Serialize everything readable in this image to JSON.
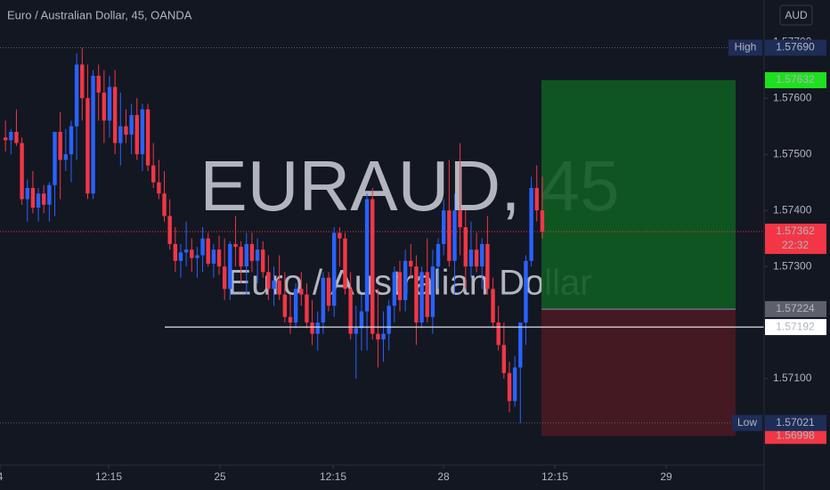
{
  "chart_data": {
    "type": "candlestick",
    "title": "Euro / Australian Dollar, 45, OANDA",
    "currency": "AUD",
    "watermark": "EURAUD, 45",
    "watermark_subtitle": "Euro / Australian Dollar",
    "up_color": "#2962ff",
    "down_color": "#f23645",
    "xlim": [
      -1,
      138.5
    ],
    "xticks": [
      {
        "value": -1,
        "label": "4"
      },
      {
        "value": 18.84,
        "label": "12:15"
      },
      {
        "value": 39.16,
        "label": "25"
      },
      {
        "value": 59.81,
        "label": "12:15"
      },
      {
        "value": 79.97,
        "label": "28"
      },
      {
        "value": 100.29,
        "label": "12:15"
      },
      {
        "value": 120.62,
        "label": "29"
      }
    ],
    "ylim": [
      1.56946,
      1.57775
    ],
    "yticks": [
      {
        "value": 1.577,
        "label": "1.57700"
      },
      {
        "value": 1.576,
        "label": "1.57600"
      },
      {
        "value": 1.575,
        "label": "1.57500"
      },
      {
        "value": 1.574,
        "label": "1.57400"
      },
      {
        "value": 1.573,
        "label": "1.57300"
      },
      {
        "value": 1.571,
        "label": "1.57100"
      }
    ],
    "open": [
      1.5753,
      1.57525,
      1.5754,
      1.5752,
      1.5742,
      1.5744,
      1.57405,
      1.5743,
      1.5741,
      1.57445,
      1.5754,
      1.5749,
      1.575,
      1.5755,
      1.5766,
      1.576,
      1.5743,
      1.5764,
      1.5761,
      1.5756,
      1.5762,
      1.5752,
      1.5755,
      1.57535,
      1.5757,
      1.575,
      1.5758,
      1.5748,
      1.5745,
      1.5743,
      1.5739,
      1.5734,
      1.5731,
      1.57325,
      1.5733,
      1.57315,
      1.5732,
      1.5735,
      1.57305,
      1.5733,
      1.573,
      1.5726,
      1.5734,
      1.57335,
      1.573,
      1.5734,
      1.5731,
      1.5733,
      1.5729,
      1.5726,
      1.57275,
      1.5725,
      1.5721,
      1.572,
      1.5726,
      1.5725,
      1.572,
      1.5718,
      1.572,
      1.5728,
      1.5723,
      1.5736,
      1.5735,
      1.5726,
      1.5718,
      1.5719,
      1.5722,
      1.5742,
      1.5718,
      1.5717,
      1.5718,
      1.5723,
      1.5729,
      1.5724,
      1.5731,
      1.573,
      1.572,
      1.5729,
      1.5721,
      1.573,
      1.5734,
      1.574,
      1.5731,
      1.574,
      1.5737,
      1.573,
      1.5733,
      1.573,
      1.5734,
      1.5726,
      1.572,
      1.5716,
      1.5711,
      1.5706,
      1.5712,
      1.572,
      1.5731,
      1.5744,
      1.574
    ],
    "high": [
      1.5756,
      1.57545,
      1.5758,
      1.5753,
      1.57455,
      1.5747,
      1.5744,
      1.57445,
      1.5745,
      1.5754,
      1.57575,
      1.57545,
      1.5756,
      1.5768,
      1.5769,
      1.5766,
      1.5765,
      1.5766,
      1.5765,
      1.5764,
      1.5765,
      1.5761,
      1.5758,
      1.5759,
      1.576,
      1.5759,
      1.5759,
      1.5752,
      1.5749,
      1.5747,
      1.5742,
      1.5737,
      1.5734,
      1.5738,
      1.5735,
      1.57335,
      1.5737,
      1.5736,
      1.5734,
      1.57355,
      1.5735,
      1.57345,
      1.5739,
      1.57345,
      1.5736,
      1.5736,
      1.5735,
      1.57345,
      1.5732,
      1.573,
      1.5732,
      1.5729,
      1.5725,
      1.5727,
      1.5729,
      1.5727,
      1.5724,
      1.5722,
      1.5729,
      1.5729,
      1.5737,
      1.5737,
      1.5736,
      1.5729,
      1.5723,
      1.5725,
      1.5743,
      1.5744,
      1.5726,
      1.5722,
      1.5724,
      1.573,
      1.5731,
      1.5733,
      1.5734,
      1.5732,
      1.573,
      1.5735,
      1.5733,
      1.5735,
      1.5742,
      1.5749,
      1.5743,
      1.5752,
      1.574,
      1.5738,
      1.5736,
      1.5735,
      1.5739,
      1.5728,
      1.5723,
      1.572,
      1.5713,
      1.5714,
      1.572,
      1.5732,
      1.5746,
      1.5748,
      1.5746
    ],
    "low": [
      1.57505,
      1.575,
      1.57515,
      1.5741,
      1.5738,
      1.57395,
      1.5738,
      1.57395,
      1.5738,
      1.5739,
      1.5742,
      1.5747,
      1.5745,
      1.5749,
      1.5756,
      1.5742,
      1.5742,
      1.5756,
      1.5752,
      1.5753,
      1.575,
      1.5748,
      1.5752,
      1.575,
      1.5749,
      1.5747,
      1.5747,
      1.5744,
      1.5742,
      1.5738,
      1.5733,
      1.5729,
      1.5728,
      1.573,
      1.5729,
      1.5728,
      1.5729,
      1.573,
      1.5728,
      1.57285,
      1.5724,
      1.5724,
      1.573,
      1.5727,
      1.5725,
      1.5729,
      1.5727,
      1.5728,
      1.5724,
      1.5723,
      1.5724,
      1.572,
      1.5718,
      1.5719,
      1.5723,
      1.5719,
      1.5716,
      1.5715,
      1.5718,
      1.5722,
      1.5721,
      1.573,
      1.5725,
      1.5717,
      1.571,
      1.5715,
      1.5715,
      1.5717,
      1.5712,
      1.5713,
      1.5715,
      1.572,
      1.5722,
      1.5722,
      1.5728,
      1.5716,
      1.5719,
      1.572,
      1.5718,
      1.5726,
      1.5732,
      1.573,
      1.5725,
      1.5732,
      1.5726,
      1.5728,
      1.5729,
      1.5726,
      1.5725,
      1.5719,
      1.5715,
      1.571,
      1.5704,
      1.5705,
      1.57021,
      1.5716,
      1.573,
      1.5738,
      1.5735
    ],
    "close": [
      1.57525,
      1.5754,
      1.5752,
      1.5742,
      1.5744,
      1.57405,
      1.5743,
      1.5741,
      1.57445,
      1.5754,
      1.5749,
      1.575,
      1.5755,
      1.5766,
      1.576,
      1.5743,
      1.5764,
      1.5761,
      1.5756,
      1.5762,
      1.5752,
      1.5755,
      1.57535,
      1.5757,
      1.575,
      1.5758,
      1.5748,
      1.5745,
      1.5743,
      1.5739,
      1.5734,
      1.5731,
      1.57325,
      1.5733,
      1.57315,
      1.5732,
      1.5735,
      1.57305,
      1.5733,
      1.573,
      1.5726,
      1.5734,
      1.57335,
      1.573,
      1.5734,
      1.5731,
      1.5733,
      1.5729,
      1.5726,
      1.57275,
      1.5725,
      1.5721,
      1.572,
      1.5726,
      1.5725,
      1.572,
      1.5718,
      1.572,
      1.5728,
      1.5723,
      1.5736,
      1.5735,
      1.5726,
      1.5718,
      1.5719,
      1.5722,
      1.5742,
      1.5718,
      1.5717,
      1.5718,
      1.5723,
      1.5729,
      1.5724,
      1.5731,
      1.573,
      1.572,
      1.5729,
      1.5721,
      1.573,
      1.5734,
      1.574,
      1.5731,
      1.574,
      1.5737,
      1.573,
      1.5733,
      1.573,
      1.5734,
      1.5726,
      1.572,
      1.5716,
      1.5711,
      1.5706,
      1.5712,
      1.572,
      1.5731,
      1.5744,
      1.574,
      1.57362
    ],
    "high_label": {
      "name": "High",
      "price": {
        "value": 1.5769,
        "label": "1.57690"
      }
    },
    "low_label": {
      "name": "Low",
      "price": 1.57021
    },
    "last_price": 1.57362,
    "countdown": "22:32",
    "crosshair_price": 1.57192,
    "position": {
      "entry": 1.57224,
      "target": 1.57632,
      "stop": 1.56998,
      "entry_color": "#5d606b",
      "target_color": "#0f5c22",
      "stop_color": "#4a1921"
    }
  }
}
